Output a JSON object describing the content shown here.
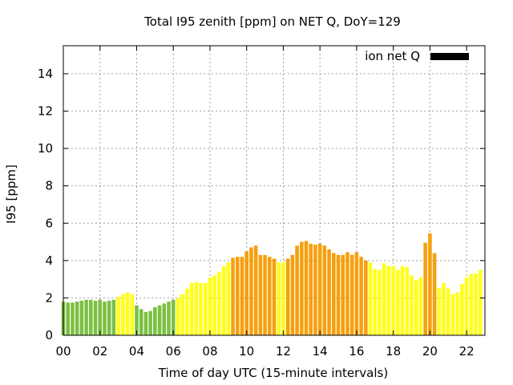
{
  "chart_data": {
    "type": "bar",
    "title": "Total I95 zenith [ppm] on NET Q, DoY=129",
    "xlabel": "Time of day UTC (15-minute intervals)",
    "ylabel": "I95 [ppm]",
    "x_unit": "hours UTC",
    "xlim": [
      0,
      23
    ],
    "ylim": [
      0,
      15.5
    ],
    "x_ticks": [
      {
        "value": 0,
        "label": "00"
      },
      {
        "value": 2,
        "label": "02"
      },
      {
        "value": 4,
        "label": "04"
      },
      {
        "value": 6,
        "label": "06"
      },
      {
        "value": 8,
        "label": "08"
      },
      {
        "value": 10,
        "label": "10"
      },
      {
        "value": 12,
        "label": "12"
      },
      {
        "value": 14,
        "label": "14"
      },
      {
        "value": 16,
        "label": "16"
      },
      {
        "value": 18,
        "label": "18"
      },
      {
        "value": 20,
        "label": "20"
      },
      {
        "value": 22,
        "label": "22"
      }
    ],
    "y_ticks": [
      {
        "value": 0,
        "label": "0"
      },
      {
        "value": 2,
        "label": "2"
      },
      {
        "value": 4,
        "label": "4"
      },
      {
        "value": 6,
        "label": "6"
      },
      {
        "value": 8,
        "label": "8"
      },
      {
        "value": 10,
        "label": "10"
      },
      {
        "value": 12,
        "label": "12"
      },
      {
        "value": 14,
        "label": "14"
      }
    ],
    "grid": true,
    "legend": {
      "label": "ion net Q",
      "position": "top-right",
      "color": "#000000"
    },
    "bar_width_hours": 0.2,
    "colors": {
      "green": "#7bc043",
      "yellow": "#ffff1a",
      "orange": "#f5a00f"
    },
    "series": [
      {
        "x": [
          0.0,
          0.25,
          0.5,
          0.75,
          1.0,
          1.25,
          1.5,
          1.75,
          2.0,
          2.25,
          2.5,
          2.75,
          3.0,
          3.25,
          3.5,
          3.75,
          4.0,
          4.25,
          4.5,
          4.75,
          5.0,
          5.25,
          5.5,
          5.75,
          6.0,
          6.25,
          6.5,
          6.75,
          7.0,
          7.25,
          7.5,
          7.75,
          8.0,
          8.25,
          8.5,
          8.75,
          9.0,
          9.25,
          9.5,
          9.75,
          10.0,
          10.25,
          10.5,
          10.75,
          11.0,
          11.25,
          11.5,
          11.75,
          12.0,
          12.25,
          12.5,
          12.75,
          13.0,
          13.25,
          13.5,
          13.75,
          14.0,
          14.25,
          14.5,
          14.75,
          15.0,
          15.25,
          15.5,
          15.75,
          16.0,
          16.25,
          16.5,
          16.75,
          17.0,
          17.25,
          17.5,
          17.75,
          18.0,
          18.25,
          18.5,
          18.75,
          19.0,
          19.25,
          19.5,
          19.75,
          20.0,
          20.25,
          20.5,
          20.75,
          21.0,
          21.25,
          21.5,
          21.75,
          22.0,
          22.25,
          22.5,
          22.75
        ],
        "values": [
          1.8,
          1.75,
          1.75,
          1.8,
          1.85,
          1.9,
          1.9,
          1.85,
          1.9,
          1.8,
          1.85,
          1.9,
          2.05,
          2.2,
          2.3,
          2.2,
          1.6,
          1.4,
          1.25,
          1.3,
          1.5,
          1.6,
          1.7,
          1.8,
          1.9,
          2.0,
          2.2,
          2.5,
          2.8,
          2.85,
          2.8,
          2.8,
          3.1,
          3.2,
          3.4,
          3.7,
          3.9,
          4.15,
          4.2,
          4.2,
          4.5,
          4.7,
          4.8,
          4.3,
          4.3,
          4.2,
          4.1,
          3.9,
          3.9,
          4.1,
          4.3,
          4.8,
          5.0,
          5.05,
          4.9,
          4.85,
          4.9,
          4.8,
          4.6,
          4.4,
          4.3,
          4.3,
          4.45,
          4.3,
          4.45,
          4.2,
          4.0,
          3.9,
          3.55,
          3.5,
          3.85,
          3.7,
          3.7,
          3.5,
          3.7,
          3.65,
          3.2,
          2.95,
          3.1,
          4.95,
          5.45,
          4.4,
          2.55,
          2.8,
          2.5,
          2.2,
          2.3,
          2.75,
          3.1,
          3.3,
          3.3,
          3.5
        ],
        "levels": [
          "green",
          "green",
          "green",
          "green",
          "green",
          "green",
          "green",
          "green",
          "green",
          "green",
          "green",
          "green",
          "yellow",
          "yellow",
          "yellow",
          "yellow",
          "green",
          "green",
          "green",
          "green",
          "green",
          "green",
          "green",
          "green",
          "green",
          "yellow",
          "yellow",
          "yellow",
          "yellow",
          "yellow",
          "yellow",
          "yellow",
          "yellow",
          "yellow",
          "yellow",
          "yellow",
          "yellow",
          "orange",
          "orange",
          "orange",
          "orange",
          "orange",
          "orange",
          "orange",
          "orange",
          "orange",
          "orange",
          "yellow",
          "yellow",
          "orange",
          "orange",
          "orange",
          "orange",
          "orange",
          "orange",
          "orange",
          "orange",
          "orange",
          "orange",
          "orange",
          "orange",
          "orange",
          "orange",
          "orange",
          "orange",
          "orange",
          "orange",
          "yellow",
          "yellow",
          "yellow",
          "yellow",
          "yellow",
          "yellow",
          "yellow",
          "yellow",
          "yellow",
          "yellow",
          "yellow",
          "yellow",
          "orange",
          "orange",
          "orange",
          "yellow",
          "yellow",
          "yellow",
          "yellow",
          "yellow",
          "yellow",
          "yellow",
          "yellow",
          "yellow",
          "yellow"
        ]
      }
    ]
  }
}
